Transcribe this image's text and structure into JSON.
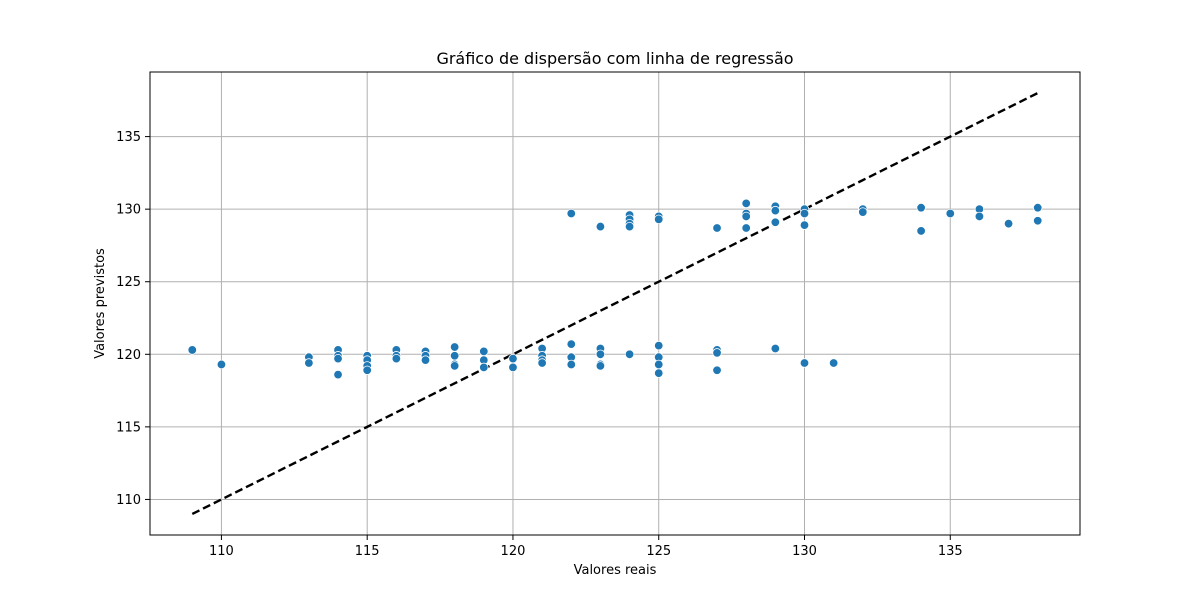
{
  "chart_data": {
    "type": "scatter",
    "title": "Gráfico de dispersão com linha de regressão",
    "xlabel": "Valores reais",
    "ylabel": "Valores previstos",
    "xlim": [
      107.55,
      139.45
    ],
    "ylim": [
      107.55,
      139.45
    ],
    "xticks": [
      110,
      115,
      120,
      125,
      130,
      135
    ],
    "yticks": [
      110,
      115,
      120,
      125,
      130,
      135
    ],
    "xtick_labels": [
      "110",
      "115",
      "120",
      "125",
      "130",
      "135"
    ],
    "ytick_labels": [
      "110",
      "115",
      "120",
      "125",
      "130",
      "135"
    ],
    "grid": true,
    "point_color": "#1f77b4",
    "line_color": "#000000",
    "regression_line": {
      "style": "dashed",
      "x": [
        109,
        138
      ],
      "y": [
        109,
        138
      ]
    },
    "points": [
      {
        "x": 109,
        "y": 120.3
      },
      {
        "x": 110,
        "y": 119.3
      },
      {
        "x": 113,
        "y": 119.8
      },
      {
        "x": 113,
        "y": 119.4
      },
      {
        "x": 114,
        "y": 120.3
      },
      {
        "x": 114,
        "y": 119.9
      },
      {
        "x": 114,
        "y": 119.7
      },
      {
        "x": 114,
        "y": 118.6
      },
      {
        "x": 115,
        "y": 119.9
      },
      {
        "x": 115,
        "y": 119.6
      },
      {
        "x": 115,
        "y": 119.2
      },
      {
        "x": 115,
        "y": 118.9
      },
      {
        "x": 116,
        "y": 120.3
      },
      {
        "x": 116,
        "y": 119.9
      },
      {
        "x": 116,
        "y": 119.7
      },
      {
        "x": 117,
        "y": 120.2
      },
      {
        "x": 117,
        "y": 119.9
      },
      {
        "x": 117,
        "y": 119.6
      },
      {
        "x": 118,
        "y": 120.5
      },
      {
        "x": 118,
        "y": 119.9
      },
      {
        "x": 118,
        "y": 119.3
      },
      {
        "x": 118,
        "y": 119.2
      },
      {
        "x": 119,
        "y": 120.2
      },
      {
        "x": 119,
        "y": 119.6
      },
      {
        "x": 119,
        "y": 119.1
      },
      {
        "x": 120,
        "y": 119.7
      },
      {
        "x": 120,
        "y": 119.1
      },
      {
        "x": 121,
        "y": 120.4
      },
      {
        "x": 121,
        "y": 119.9
      },
      {
        "x": 121,
        "y": 119.6
      },
      {
        "x": 121,
        "y": 119.4
      },
      {
        "x": 122,
        "y": 129.7
      },
      {
        "x": 122,
        "y": 120.7
      },
      {
        "x": 122,
        "y": 119.8
      },
      {
        "x": 122,
        "y": 119.3
      },
      {
        "x": 123,
        "y": 128.8
      },
      {
        "x": 123,
        "y": 120.4
      },
      {
        "x": 123,
        "y": 120.0
      },
      {
        "x": 123,
        "y": 119.3
      },
      {
        "x": 123,
        "y": 119.2
      },
      {
        "x": 124,
        "y": 129.6
      },
      {
        "x": 124,
        "y": 129.3
      },
      {
        "x": 124,
        "y": 129.0
      },
      {
        "x": 124,
        "y": 128.8
      },
      {
        "x": 124,
        "y": 120.0
      },
      {
        "x": 125,
        "y": 129.5
      },
      {
        "x": 125,
        "y": 129.3
      },
      {
        "x": 125,
        "y": 120.6
      },
      {
        "x": 125,
        "y": 119.8
      },
      {
        "x": 125,
        "y": 119.3
      },
      {
        "x": 125,
        "y": 118.7
      },
      {
        "x": 127,
        "y": 128.7
      },
      {
        "x": 127,
        "y": 120.3
      },
      {
        "x": 127,
        "y": 120.1
      },
      {
        "x": 127,
        "y": 118.9
      },
      {
        "x": 128,
        "y": 130.4
      },
      {
        "x": 128,
        "y": 129.7
      },
      {
        "x": 128,
        "y": 129.5
      },
      {
        "x": 128,
        "y": 128.7
      },
      {
        "x": 129,
        "y": 130.2
      },
      {
        "x": 129,
        "y": 129.9
      },
      {
        "x": 129,
        "y": 129.1
      },
      {
        "x": 129,
        "y": 120.4
      },
      {
        "x": 130,
        "y": 130.0
      },
      {
        "x": 130,
        "y": 129.7
      },
      {
        "x": 130,
        "y": 128.9
      },
      {
        "x": 130,
        "y": 119.4
      },
      {
        "x": 131,
        "y": 119.4
      },
      {
        "x": 132,
        "y": 130.0
      },
      {
        "x": 132,
        "y": 129.8
      },
      {
        "x": 134,
        "y": 130.1
      },
      {
        "x": 134,
        "y": 128.5
      },
      {
        "x": 135,
        "y": 129.7
      },
      {
        "x": 136,
        "y": 130.0
      },
      {
        "x": 136,
        "y": 129.5
      },
      {
        "x": 137,
        "y": 129.0
      },
      {
        "x": 138,
        "y": 130.1
      },
      {
        "x": 138,
        "y": 129.2
      }
    ]
  }
}
